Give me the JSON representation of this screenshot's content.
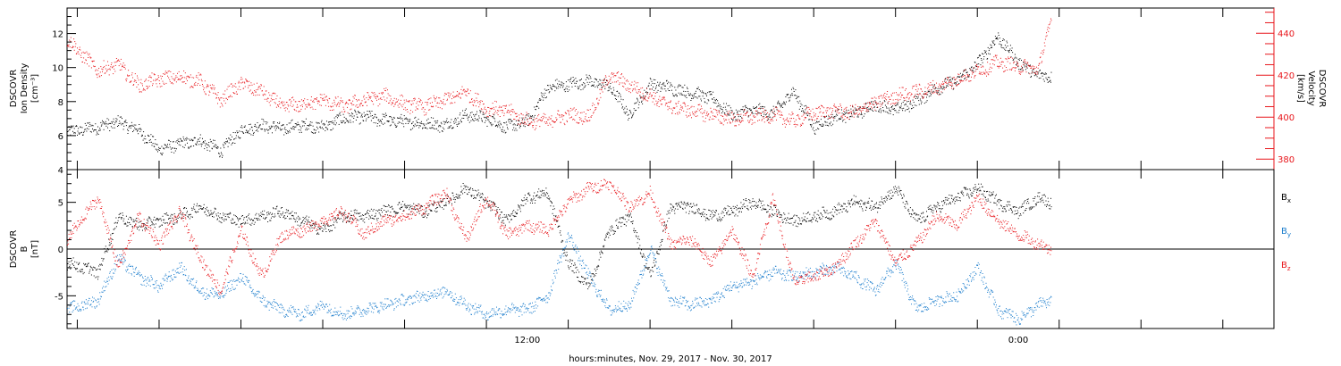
{
  "figure": {
    "xlabel": "hours:minutes, Nov. 29, 2017 - Nov. 30, 2017",
    "x_tick_labels": [
      {
        "label": "12:00",
        "hours": 12
      },
      {
        "label": "0:00",
        "hours": 24
      }
    ],
    "xlim_hours": [
      0.75,
      30.25
    ],
    "data_end_hours": 24.8
  },
  "chart_data": [
    {
      "type": "scatter",
      "panel": "top",
      "left_axis": {
        "label_lines": [
          "DSCOVR",
          "Ion Density",
          "[cm⁻³]"
        ],
        "ylim": [
          4,
          13.5
        ],
        "ticks": [
          4,
          6,
          8,
          10,
          12
        ],
        "color": "#000000"
      },
      "right_axis": {
        "label_lines": [
          "DSCOVR",
          "Velocity",
          "[km/s]"
        ],
        "ylim": [
          375,
          452
        ],
        "ticks": [
          380,
          400,
          420,
          440
        ],
        "color": "#e8171c"
      },
      "series": [
        {
          "name": "Ion Density",
          "axis": "left",
          "color": "#000000",
          "x_hours": [
            0.75,
            1.5,
            2,
            2.5,
            3,
            3.5,
            4,
            4.5,
            5,
            5.5,
            6,
            6.5,
            7,
            7.5,
            8,
            8.5,
            9,
            9.5,
            10,
            10.5,
            11,
            11.5,
            12,
            12.5,
            13,
            13.5,
            14,
            14.5,
            15,
            15.5,
            16,
            16.5,
            17,
            17.5,
            18,
            18.5,
            19,
            19.5,
            20,
            20.5,
            21,
            21.5,
            22,
            22.5,
            23,
            23.5,
            24,
            24.5,
            24.8
          ],
          "values": [
            6.2,
            6.5,
            6.8,
            6.3,
            5.2,
            5.5,
            5.7,
            5.1,
            6.3,
            6.6,
            6.4,
            6.6,
            6.5,
            7.0,
            7.1,
            6.9,
            6.8,
            6.7,
            6.6,
            7.2,
            7.0,
            6.5,
            6.8,
            8.8,
            9.0,
            9.2,
            8.9,
            7.2,
            9.0,
            8.8,
            8.5,
            8.2,
            7.2,
            7.5,
            7.3,
            8.6,
            6.5,
            7.1,
            7.3,
            7.8,
            7.5,
            8.0,
            8.8,
            9.2,
            10.2,
            11.8,
            10.3,
            9.5,
            9.5
          ]
        },
        {
          "name": "Velocity",
          "axis": "right",
          "color": "#e8171c",
          "x_hours": [
            0.75,
            1.0,
            1.5,
            2,
            2.5,
            3,
            3.5,
            4,
            4.5,
            5,
            5.5,
            6,
            6.5,
            7,
            7.5,
            8,
            8.5,
            9,
            9.5,
            10,
            10.5,
            11,
            11.5,
            12,
            12.5,
            13,
            13.5,
            14,
            14.5,
            15,
            15.5,
            16,
            16.5,
            17,
            17.5,
            18,
            18.5,
            19,
            19.5,
            20,
            20.5,
            21,
            21.5,
            22,
            22.5,
            23,
            23.5,
            24,
            24.5,
            24.8
          ],
          "values": [
            437,
            432,
            422,
            425,
            415,
            418,
            419,
            417,
            408,
            416,
            412,
            405,
            406,
            408,
            405,
            408,
            410,
            406,
            405,
            408,
            412,
            404,
            403,
            398,
            398,
            401,
            400,
            420,
            415,
            410,
            405,
            403,
            401,
            399,
            400,
            401,
            398,
            402,
            403,
            402,
            407,
            410,
            412,
            414,
            418,
            422,
            426,
            424,
            423,
            448
          ]
        }
      ]
    },
    {
      "type": "scatter",
      "panel": "bottom",
      "left_axis": {
        "label_lines": [
          "DSCOVR",
          "B",
          "[nT]"
        ],
        "ylim": [
          -8.5,
          8.5
        ],
        "ticks": [
          -5,
          0,
          5
        ],
        "zero_line": true,
        "color": "#000000"
      },
      "legend": {
        "placement": "right",
        "entries": [
          {
            "label": "Bx",
            "base": "B",
            "sub": "x",
            "color": "#000000"
          },
          {
            "label": "By",
            "base": "B",
            "sub": "y",
            "color": "#1a7ccc"
          },
          {
            "label": "Bz",
            "base": "B",
            "sub": "z",
            "color": "#e8171c"
          }
        ]
      },
      "series": [
        {
          "name": "Bx",
          "color": "#000000",
          "x_hours": [
            0.75,
            1.5,
            2,
            2.5,
            3,
            3.5,
            4,
            4.5,
            5,
            5.5,
            6,
            6.5,
            7,
            7.5,
            8,
            8.5,
            9,
            9.5,
            10,
            10.5,
            11,
            11.5,
            12,
            12.5,
            13,
            13.5,
            14,
            14.5,
            15,
            15.5,
            16,
            16.5,
            17,
            17.5,
            18,
            18.5,
            19,
            19.5,
            20,
            20.5,
            21,
            21.5,
            22,
            22.5,
            23,
            23.5,
            24,
            24.5,
            24.8
          ],
          "values": [
            -1.5,
            -2.5,
            3.5,
            2.5,
            3.0,
            3.5,
            4.5,
            3.5,
            3.0,
            3.5,
            4.0,
            3.0,
            2.0,
            3.5,
            3.5,
            4.0,
            4.5,
            4.0,
            5.0,
            6.5,
            5.0,
            3.0,
            5.5,
            6.0,
            -1.5,
            -4.0,
            2.0,
            3.5,
            -3.0,
            4.5,
            4.5,
            3.5,
            4.0,
            5.0,
            4.0,
            3.0,
            3.5,
            4.0,
            5.0,
            4.5,
            6.5,
            3.0,
            4.5,
            5.5,
            6.5,
            5.0,
            4.0,
            5.5,
            5.0
          ]
        },
        {
          "name": "By",
          "color": "#1a7ccc",
          "x_hours": [
            0.75,
            1.5,
            2,
            2.5,
            3,
            3.5,
            4,
            4.5,
            5,
            5.5,
            6,
            6.5,
            7,
            7.5,
            8,
            8.5,
            9,
            9.5,
            10,
            10.5,
            11,
            11.5,
            12,
            12.5,
            13,
            13.5,
            14,
            14.5,
            15,
            15.5,
            16,
            16.5,
            17,
            17.5,
            18,
            18.5,
            19,
            19.5,
            20,
            20.5,
            21,
            21.5,
            22,
            22.5,
            23,
            23.5,
            24,
            24.5,
            24.8
          ],
          "values": [
            -6.5,
            -5.5,
            -1.0,
            -3.0,
            -4.0,
            -2.0,
            -4.5,
            -5.0,
            -3.0,
            -5.5,
            -6.5,
            -7.0,
            -6.0,
            -7.0,
            -6.5,
            -6.0,
            -5.5,
            -5.0,
            -4.5,
            -6.0,
            -7.0,
            -6.5,
            -6.5,
            -5.0,
            1.5,
            -3.0,
            -6.5,
            -6.0,
            0.0,
            -5.5,
            -6.0,
            -5.5,
            -4.0,
            -3.5,
            -2.5,
            -3.0,
            -2.5,
            -2.0,
            -3.0,
            -4.5,
            -1.5,
            -6.5,
            -5.5,
            -5.0,
            -2.0,
            -6.5,
            -7.5,
            -6.0,
            -5.5
          ]
        },
        {
          "name": "Bz",
          "color": "#e8171c",
          "x_hours": [
            0.75,
            1.5,
            2,
            2.5,
            3,
            3.5,
            4,
            4.5,
            5,
            5.5,
            6,
            6.5,
            7,
            7.5,
            8,
            8.5,
            9,
            9.5,
            10,
            10.5,
            11,
            11.5,
            12,
            12.5,
            13,
            13.5,
            14,
            14.5,
            15,
            15.5,
            16,
            16.5,
            17,
            17.5,
            18,
            18.5,
            19,
            19.5,
            20,
            20.5,
            21,
            21.5,
            22,
            22.5,
            23,
            23.5,
            24,
            24.5,
            24.8
          ],
          "values": [
            1.0,
            5.5,
            -2.0,
            3.5,
            0.5,
            4.0,
            -1.0,
            -4.5,
            2.0,
            -3.0,
            1.5,
            2.0,
            3.0,
            4.0,
            1.5,
            3.0,
            3.5,
            4.5,
            6.0,
            1.0,
            5.5,
            1.5,
            2.5,
            2.0,
            5.0,
            6.5,
            7.0,
            4.5,
            6.0,
            0.5,
            1.0,
            -1.5,
            2.0,
            -3.0,
            5.5,
            -3.5,
            -3.0,
            -2.0,
            0.5,
            3.0,
            -1.5,
            0.5,
            3.5,
            2.5,
            5.5,
            3.0,
            1.5,
            0.5,
            0.0
          ]
        }
      ]
    }
  ]
}
